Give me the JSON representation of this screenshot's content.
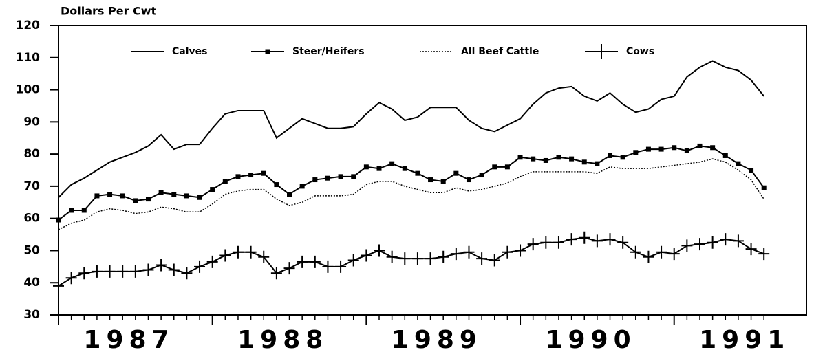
{
  "chart_data": {
    "type": "line",
    "title": "Dollars Per Cwt",
    "categories": [
      null,
      null,
      null,
      null,
      null,
      null,
      "1987",
      null,
      null,
      null,
      null,
      null,
      null,
      null,
      null,
      null,
      null,
      null,
      "1988",
      null,
      null,
      null,
      null,
      null,
      null,
      null,
      null,
      null,
      null,
      null,
      "1989",
      null,
      null,
      null,
      null,
      null,
      null,
      null,
      null,
      null,
      null,
      null,
      "1990",
      null,
      null,
      null,
      null,
      null,
      null,
      null,
      null,
      null,
      null,
      null,
      "1991",
      null
    ],
    "series": [
      {
        "name": "Calves",
        "color": "#000000",
        "style": "solid",
        "marker": "none",
        "values": [
          66.5,
          70.5,
          72.5,
          75,
          77.5,
          79,
          80.5,
          82.5,
          86,
          81.5,
          83,
          83,
          88,
          92.5,
          93.5,
          93.5,
          93.5,
          85,
          88,
          91,
          89.5,
          88,
          88,
          88.5,
          92.5,
          96,
          94,
          90.5,
          91.5,
          94.5,
          94.5,
          94.5,
          90.5,
          88,
          87,
          89,
          91,
          95.5,
          99,
          100.5,
          101,
          98,
          96.5,
          99,
          95.5,
          93,
          94,
          97,
          98,
          104,
          107,
          109,
          107,
          106,
          103,
          98
        ]
      },
      {
        "name": "Steer/Heifers",
        "color": "#000000",
        "style": "solid",
        "marker": "square",
        "values": [
          59.5,
          62.5,
          62.5,
          67,
          67.5,
          67,
          65.5,
          66,
          68,
          67.5,
          67,
          66.5,
          69,
          71.5,
          73,
          73.5,
          74,
          70.5,
          67.5,
          70,
          72,
          72.5,
          73,
          73,
          76,
          75.5,
          77,
          75.5,
          74,
          72,
          71.5,
          74,
          72,
          73.5,
          76,
          76,
          79,
          78.5,
          78,
          79,
          78.5,
          77.5,
          77,
          79.5,
          79,
          80.5,
          81.5,
          81.5,
          82,
          81,
          82.5,
          82,
          79.5,
          77,
          75,
          69.5
        ]
      },
      {
        "name": "All Beef Cattle",
        "color": "#000000",
        "style": "dotted",
        "marker": "none",
        "values": [
          56.5,
          58.5,
          59.5,
          62,
          63,
          62.5,
          61.5,
          62,
          63.5,
          63,
          62,
          62,
          64.5,
          67.5,
          68.5,
          69,
          69,
          66,
          64,
          65,
          67,
          67,
          67,
          67.5,
          70.5,
          71.5,
          71.5,
          70,
          69,
          68,
          68,
          69.5,
          68.5,
          69,
          70,
          71,
          73,
          74.5,
          74.5,
          74.5,
          74.5,
          74.5,
          74,
          76,
          75.5,
          75.5,
          75.5,
          76,
          76.5,
          77,
          77.5,
          78.5,
          77.5,
          75,
          72,
          66
        ]
      },
      {
        "name": "Cows",
        "color": "#000000",
        "style": "solid",
        "marker": "plus",
        "values": [
          39,
          41.5,
          43,
          43.5,
          43.5,
          43.5,
          43.5,
          44,
          45.5,
          44,
          43,
          45,
          46.5,
          48.5,
          49.5,
          49.5,
          48,
          43,
          44.5,
          46.5,
          46.5,
          45,
          45,
          47,
          48.5,
          50,
          48,
          47.5,
          47.5,
          47.5,
          48,
          49,
          49.5,
          47.5,
          47,
          49.5,
          50,
          52,
          52.5,
          52.5,
          53.5,
          54,
          53,
          53.5,
          52.5,
          49.5,
          48,
          49.5,
          49,
          51.5,
          52,
          52.5,
          53.5,
          53,
          50.5,
          49
        ]
      }
    ],
    "ylim": [
      30,
      120
    ],
    "yticks": [
      30,
      40,
      50,
      60,
      70,
      80,
      90,
      100,
      110,
      120
    ],
    "legend": "top",
    "grid": false
  }
}
